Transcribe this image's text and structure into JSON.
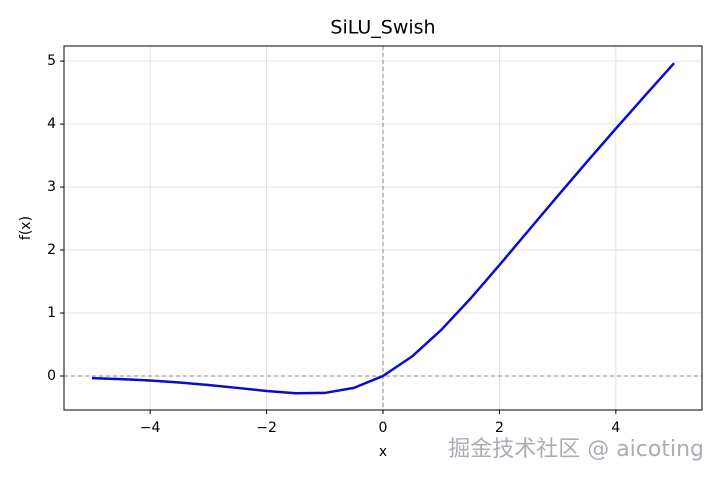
{
  "chart_data": {
    "type": "line",
    "title": "SiLU_Swish",
    "xlabel": "x",
    "ylabel": "f(x)",
    "x": [
      -5,
      -4.5,
      -4,
      -3.5,
      -3,
      -2.5,
      -2,
      -1.5,
      -1,
      -0.5,
      0,
      0.5,
      1,
      1.5,
      2,
      2.5,
      3,
      3.5,
      4,
      4.5,
      5
    ],
    "series": [
      {
        "name": "SiLU",
        "color": "#0a0ad0",
        "values": [
          -0.0335,
          -0.0494,
          -0.0719,
          -0.1026,
          -0.1423,
          -0.1896,
          -0.2384,
          -0.2736,
          -0.2689,
          -0.1888,
          0,
          0.3112,
          0.7311,
          1.2264,
          1.7616,
          2.3104,
          2.8577,
          3.3974,
          3.9281,
          4.4506,
          4.9665
        ]
      }
    ],
    "xlim": [
      -5.48,
      5.48
    ],
    "ylim": [
      -0.54,
      5.24
    ],
    "xticks": [
      {
        "value": -4,
        "label": "−4"
      },
      {
        "value": -2,
        "label": "−2"
      },
      0,
      2,
      4
    ],
    "yticks": [
      0,
      1,
      2,
      3,
      4,
      5
    ],
    "grid": true,
    "hline": 0,
    "vline": 0,
    "watermark": "掘金技术社区 @ aicoting"
  }
}
